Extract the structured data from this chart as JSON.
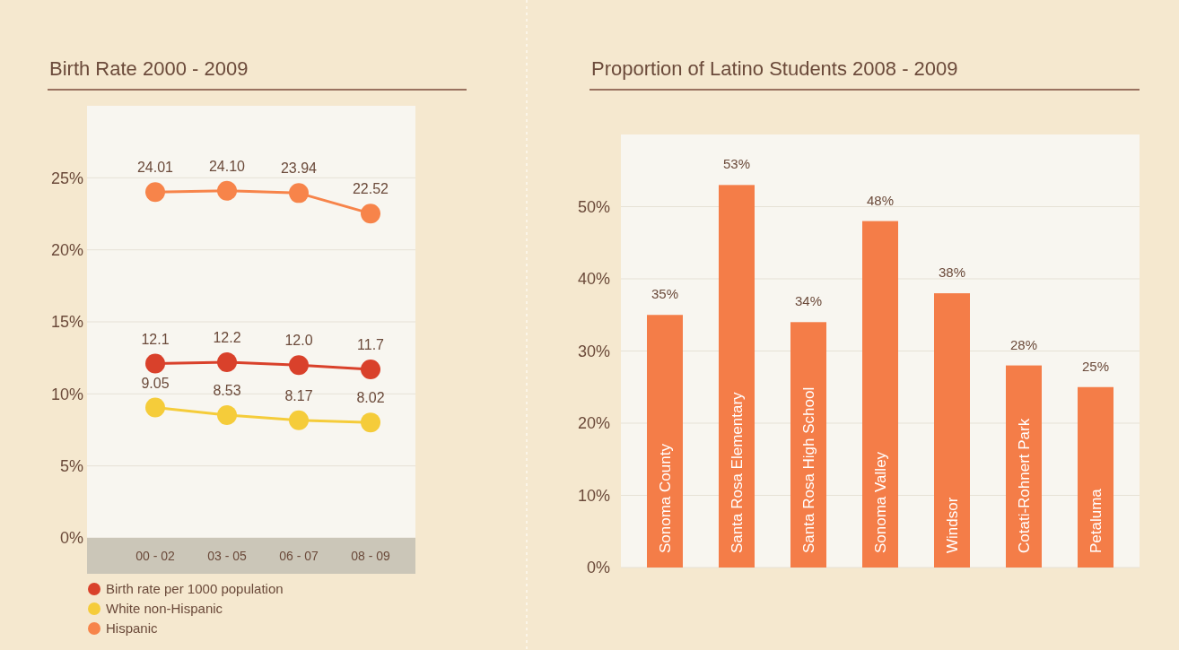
{
  "chart_data": [
    {
      "type": "line",
      "title": "Birth Rate 2000 - 2009",
      "categories": [
        "00 - 02",
        "03 - 05",
        "06 - 07",
        "08 - 09"
      ],
      "series": [
        {
          "name": "Birth rate per 1000 population",
          "color": "#d9412b",
          "values": [
            12.1,
            12.2,
            12.0,
            11.7
          ],
          "value_labels": [
            "12.1",
            "12.2",
            "12.0",
            "11.7"
          ]
        },
        {
          "name": "White non-Hispanic",
          "color": "#f5cc3a",
          "values": [
            9.05,
            8.53,
            8.17,
            8.02
          ],
          "value_labels": [
            "9.05",
            "8.53",
            "8.17",
            "8.02"
          ]
        },
        {
          "name": "Hispanic",
          "color": "#f7844a",
          "values": [
            24.01,
            24.1,
            23.94,
            22.52
          ],
          "value_labels": [
            "24.01",
            "24.10",
            "23.94",
            "22.52"
          ]
        }
      ],
      "ylim": [
        0,
        30
      ],
      "yticks": [
        {
          "value": 0,
          "label": "0%"
        },
        {
          "value": 5,
          "label": "5%"
        },
        {
          "value": 10,
          "label": "10%"
        },
        {
          "value": 15,
          "label": "15%"
        },
        {
          "value": 20,
          "label": "20%"
        },
        {
          "value": 25,
          "label": "25%"
        }
      ],
      "grid": "y",
      "legend": "bottom",
      "marker": "circle"
    },
    {
      "type": "bar",
      "title": "Proportion of Latino Students 2008 - 2009",
      "categories": [
        "Sonoma County",
        "Santa Rosa Elementary",
        "Santa Rosa High School",
        "Sonoma Valley",
        "Windsor",
        "Cotati-Rohnert Park",
        "Petaluma"
      ],
      "values": [
        35,
        53,
        34,
        48,
        38,
        28,
        25
      ],
      "value_labels": [
        "35%",
        "53%",
        "34%",
        "48%",
        "38%",
        "28%",
        "25%"
      ],
      "color": "#f47d48",
      "ylim": [
        0,
        60
      ],
      "yticks": [
        {
          "value": 0,
          "label": "0%"
        },
        {
          "value": 10,
          "label": "10%"
        },
        {
          "value": 20,
          "label": "20%"
        },
        {
          "value": 30,
          "label": "30%"
        },
        {
          "value": 40,
          "label": "40%"
        },
        {
          "value": 50,
          "label": "50%"
        }
      ],
      "grid": "y"
    }
  ]
}
